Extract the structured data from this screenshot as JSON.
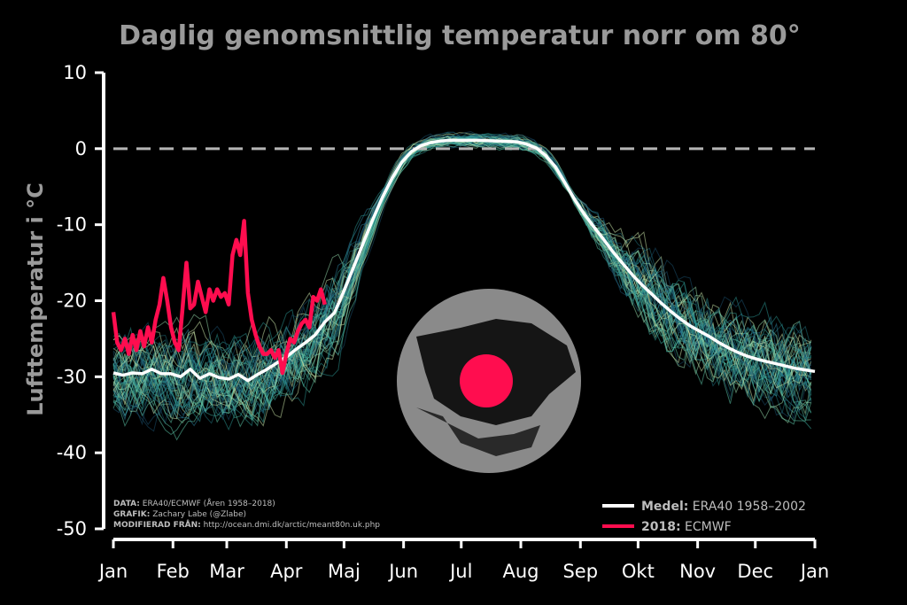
{
  "chart_data": {
    "type": "line",
    "title": "Daglig genomsnittlig temperatur norr om 80°",
    "ylabel": "Lufttemperatur i °C",
    "xlabel": "",
    "ylim": [
      -50,
      10
    ],
    "yticks": [
      "10",
      "0",
      "-10",
      "-20",
      "-30",
      "-40",
      "-50"
    ],
    "ytick_values": [
      10,
      0,
      -10,
      -20,
      -30,
      -40,
      -50
    ],
    "x_tick_labels": [
      "Jan",
      "Feb",
      "Mar",
      "Apr",
      "Maj",
      "Jun",
      "Jul",
      "Aug",
      "Sep",
      "Okt",
      "Nov",
      "Dec",
      "Jan"
    ],
    "x_tick_days": [
      0,
      31,
      59,
      90,
      120,
      151,
      181,
      212,
      243,
      273,
      304,
      334,
      365
    ],
    "reference_line": {
      "y": 0,
      "style": "dashed",
      "color": "#b5b5b5"
    },
    "series": [
      {
        "name": "Medel: ERA40 1958–2002",
        "color": "#ffffff",
        "x_day": [
          0,
          5,
          10,
          15,
          20,
          25,
          30,
          35,
          40,
          45,
          50,
          55,
          60,
          65,
          70,
          75,
          80,
          85,
          90,
          95,
          100,
          105,
          110,
          115,
          120,
          125,
          130,
          135,
          140,
          145,
          150,
          155,
          160,
          165,
          170,
          175,
          180,
          190,
          200,
          210,
          215,
          220,
          225,
          230,
          235,
          240,
          245,
          250,
          255,
          260,
          265,
          270,
          275,
          280,
          285,
          290,
          295,
          300,
          305,
          310,
          315,
          320,
          325,
          330,
          335,
          340,
          345,
          350,
          355,
          360,
          365
        ],
        "y": [
          -29.5,
          -29.8,
          -29.5,
          -29.6,
          -29.0,
          -29.6,
          -29.6,
          -30.0,
          -29.0,
          -30.2,
          -29.6,
          -30.1,
          -30.3,
          -29.7,
          -30.5,
          -29.7,
          -29.0,
          -28.2,
          -27.4,
          -26.4,
          -25.5,
          -24.5,
          -22.8,
          -21.6,
          -18.7,
          -15.6,
          -12.4,
          -9.3,
          -6.4,
          -3.9,
          -1.8,
          -0.4,
          0.4,
          0.8,
          1.0,
          1.1,
          1.1,
          1.1,
          1.0,
          0.9,
          0.6,
          0.1,
          -0.9,
          -2.4,
          -4.5,
          -6.7,
          -8.6,
          -10.3,
          -11.9,
          -13.6,
          -15.1,
          -16.6,
          -17.9,
          -19.1,
          -20.3,
          -21.4,
          -22.4,
          -23.3,
          -24.0,
          -24.7,
          -25.5,
          -26.2,
          -26.8,
          -27.3,
          -27.7,
          -28.0,
          -28.3,
          -28.6,
          -28.9,
          -29.1,
          -29.3
        ]
      },
      {
        "name": "2018: ECMWF",
        "color": "#ff0d4f",
        "x_day": [
          0,
          2,
          4,
          6,
          8,
          10,
          12,
          14,
          16,
          18,
          20,
          22,
          24,
          26,
          28,
          30,
          32,
          34,
          36,
          38,
          40,
          42,
          44,
          46,
          48,
          50,
          52,
          54,
          56,
          58,
          60,
          62,
          64,
          66,
          68,
          70,
          72,
          74,
          76,
          78,
          80,
          82,
          84,
          86,
          88,
          90,
          92,
          94,
          96,
          98,
          100,
          102,
          104,
          106,
          108,
          110
        ],
        "y": [
          -21.5,
          -25.5,
          -26.5,
          -25.0,
          -27.0,
          -24.5,
          -26.5,
          -24.0,
          -26.0,
          -23.5,
          -25.5,
          -22.5,
          -20.5,
          -17.0,
          -20.0,
          -23.5,
          -25.5,
          -26.5,
          -21.0,
          -15.0,
          -21.0,
          -20.5,
          -17.5,
          -19.5,
          -21.5,
          -18.5,
          -20.0,
          -18.5,
          -19.5,
          -19.0,
          -20.5,
          -14.0,
          -12.0,
          -14.0,
          -9.5,
          -19.0,
          -22.5,
          -24.5,
          -26.0,
          -27.0,
          -27.0,
          -26.5,
          -27.5,
          -26.5,
          -29.5,
          -27.0,
          -25.0,
          -25.5,
          -24.0,
          -23.0,
          -22.5,
          -23.5,
          -19.5,
          -20.0,
          -18.5,
          -20.5
        ]
      }
    ],
    "ensemble": {
      "description_years": "1958–2018",
      "colors": [
        "#1f6f7a",
        "#2a8f8c",
        "#3aa89b",
        "#5bc3a5",
        "#8fd3a5",
        "#c9e3a8",
        "#1a4f6b",
        "#2b7f9a"
      ]
    },
    "legend_position": "bottom-right",
    "grid": false
  },
  "legend": {
    "mean_bold": "Medel:",
    "mean_rest": "ERA40 1958–2002",
    "y2018_bold": "2018:",
    "y2018_rest": "ECMWF"
  },
  "source": {
    "data_label": "DATA:",
    "data_text": "ERA40/ECMWF (Åren 1958–2018)",
    "graphic_label": "GRAFIK:",
    "graphic_text": "Zachary Labe (@Zlabe)",
    "modified_label": "MODIFIERAD FRÅN:",
    "modified_text": "http://ocean.dmi.dk/arctic/meant80n.uk.php"
  },
  "map": {
    "land_color": "#8a8a8a",
    "highlight_color": "#ff0d4f"
  }
}
